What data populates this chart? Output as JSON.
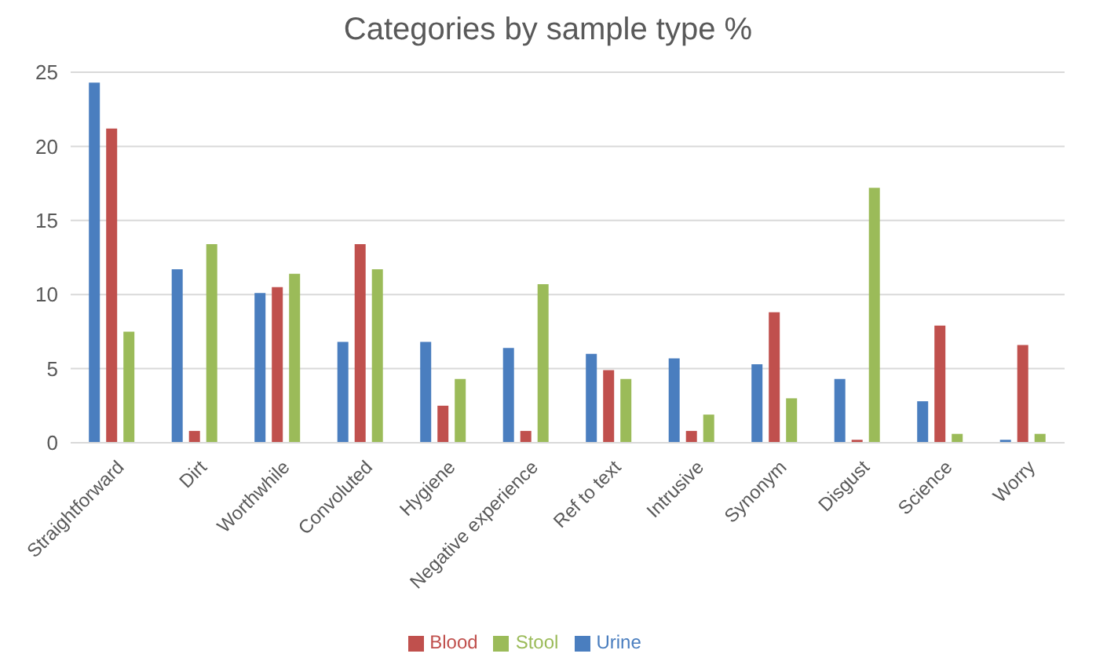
{
  "chart_data": {
    "type": "bar",
    "title": "Categories by sample type %",
    "categories": [
      "Straightforward",
      "Dirt",
      "Worthwhile",
      "Convoluted",
      "Hygiene",
      "Negative experience",
      "Ref to text",
      "Intrusive",
      "Synonym",
      "Disgust",
      "Science",
      "Worry"
    ],
    "series": [
      {
        "name": "Urine",
        "color": "#4a7ebf",
        "values": [
          24.3,
          11.7,
          10.1,
          6.8,
          6.8,
          6.4,
          6.0,
          5.7,
          5.3,
          4.3,
          2.8,
          0.2
        ]
      },
      {
        "name": "Blood",
        "color": "#c0504d",
        "values": [
          21.2,
          0.8,
          10.5,
          13.4,
          2.5,
          0.8,
          4.9,
          0.8,
          8.8,
          0.2,
          7.9,
          6.6
        ]
      },
      {
        "name": "Stool",
        "color": "#9bbb59",
        "values": [
          7.5,
          13.4,
          11.4,
          11.7,
          4.3,
          10.7,
          4.3,
          1.9,
          3.0,
          17.2,
          0.6,
          0.6
        ]
      }
    ],
    "ylim": [
      0,
      25
    ],
    "yticks": [
      0,
      5,
      10,
      15,
      20,
      25
    ],
    "grid": "y",
    "legend": "bottom"
  }
}
